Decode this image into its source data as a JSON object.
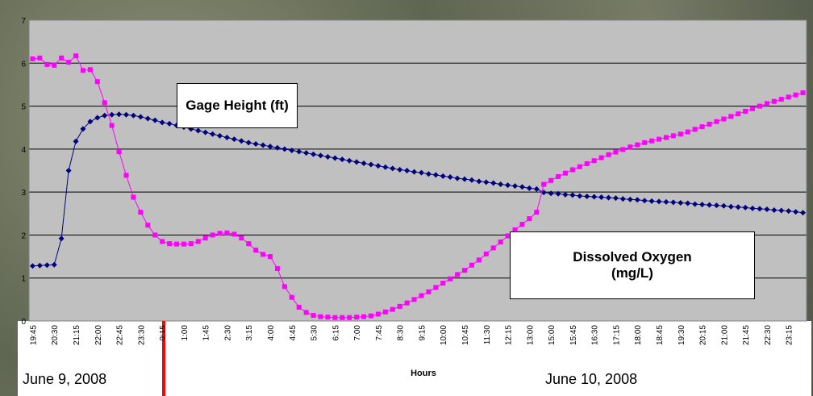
{
  "chart_data": {
    "type": "line",
    "x_label": "Hours",
    "annotations": [
      "June 9, 2008",
      "June 10, 2008"
    ],
    "categories": [
      "19:45",
      null,
      null,
      "20:30",
      null,
      null,
      "21:15",
      null,
      null,
      "22:00",
      null,
      null,
      "22:45",
      null,
      null,
      "23:30",
      null,
      null,
      "0:15",
      null,
      null,
      "1:00",
      null,
      null,
      "1:45",
      null,
      null,
      "2:30",
      null,
      null,
      "3:15",
      null,
      null,
      "4:00",
      null,
      null,
      "4:45",
      null,
      null,
      "5:30",
      null,
      null,
      "6:15",
      null,
      null,
      "7:00",
      null,
      null,
      "7:45",
      null,
      null,
      "8:30",
      null,
      null,
      "9:15",
      null,
      null,
      "10:00",
      null,
      null,
      "10:45",
      null,
      null,
      "11:30",
      null,
      null,
      "12:15",
      null,
      null,
      "13:00",
      null,
      null,
      "15:00",
      null,
      null,
      "15:45",
      null,
      null,
      "16:30",
      null,
      null,
      "17:15",
      null,
      null,
      "18:00",
      null,
      null,
      "18:45",
      null,
      null,
      "19:30",
      null,
      null,
      "20:15",
      null,
      null,
      "21:00",
      null,
      null,
      "21:45",
      null,
      null,
      "22:30",
      null,
      null,
      "23:15",
      null,
      null
    ],
    "series": [
      {
        "name": "Gage Height (ft)",
        "color": "#000080",
        "marker": "diamond",
        "values": [
          1.28,
          1.29,
          1.3,
          1.31,
          1.92,
          3.5,
          4.18,
          4.47,
          4.64,
          4.73,
          4.78,
          4.8,
          4.81,
          4.8,
          4.78,
          4.75,
          4.71,
          4.67,
          4.62,
          4.59,
          4.55,
          4.51,
          4.47,
          4.43,
          4.39,
          4.35,
          4.31,
          4.27,
          4.23,
          4.19,
          4.15,
          4.12,
          4.09,
          4.06,
          4.03,
          4.0,
          3.97,
          3.94,
          3.91,
          3.88,
          3.85,
          3.82,
          3.79,
          3.76,
          3.73,
          3.7,
          3.67,
          3.64,
          3.61,
          3.58,
          3.55,
          3.52,
          3.5,
          3.47,
          3.45,
          3.42,
          3.4,
          3.37,
          3.35,
          3.32,
          3.3,
          3.28,
          3.25,
          3.23,
          3.21,
          3.18,
          3.16,
          3.14,
          3.12,
          3.09,
          3.07,
          2.99,
          2.97,
          2.96,
          2.94,
          2.93,
          2.91,
          2.9,
          2.89,
          2.88,
          2.87,
          2.86,
          2.84,
          2.83,
          2.82,
          2.8,
          2.79,
          2.78,
          2.77,
          2.76,
          2.75,
          2.74,
          2.72,
          2.71,
          2.7,
          2.69,
          2.68,
          2.66,
          2.65,
          2.64,
          2.62,
          2.61,
          2.6,
          2.58,
          2.57,
          2.56,
          2.54,
          2.52
        ]
      },
      {
        "name": "Dissolved Oxygen (mg/L)",
        "color": "#ff00ff",
        "marker": "square",
        "values": [
          6.1,
          6.12,
          5.97,
          5.95,
          6.12,
          6.02,
          6.17,
          5.83,
          5.85,
          5.57,
          5.08,
          4.55,
          3.94,
          3.39,
          2.88,
          2.53,
          2.23,
          2.0,
          1.85,
          1.8,
          1.79,
          1.79,
          1.8,
          1.85,
          1.93,
          2.0,
          2.04,
          2.05,
          2.02,
          1.93,
          1.8,
          1.65,
          1.55,
          1.5,
          1.22,
          0.8,
          0.55,
          0.32,
          0.2,
          0.13,
          0.1,
          0.09,
          0.08,
          0.08,
          0.08,
          0.09,
          0.1,
          0.12,
          0.16,
          0.21,
          0.27,
          0.34,
          0.42,
          0.5,
          0.59,
          0.68,
          0.78,
          0.88,
          0.98,
          1.08,
          1.18,
          1.3,
          1.42,
          1.56,
          1.7,
          1.84,
          1.98,
          2.12,
          2.25,
          2.38,
          2.53,
          3.18,
          3.27,
          3.36,
          3.44,
          3.52,
          3.59,
          3.66,
          3.73,
          3.8,
          3.87,
          3.93,
          3.99,
          4.05,
          4.1,
          4.15,
          4.19,
          4.23,
          4.27,
          4.31,
          4.35,
          4.4,
          4.46,
          4.52,
          4.58,
          4.64,
          4.7,
          4.76,
          4.82,
          4.88,
          4.94,
          5.0,
          5.06,
          5.11,
          5.16,
          5.21,
          5.26,
          5.31
        ]
      }
    ],
    "ylim": [
      0,
      7
    ],
    "yticks": [
      0,
      1,
      2,
      3,
      4,
      5,
      6,
      7
    ],
    "grid": true
  }
}
